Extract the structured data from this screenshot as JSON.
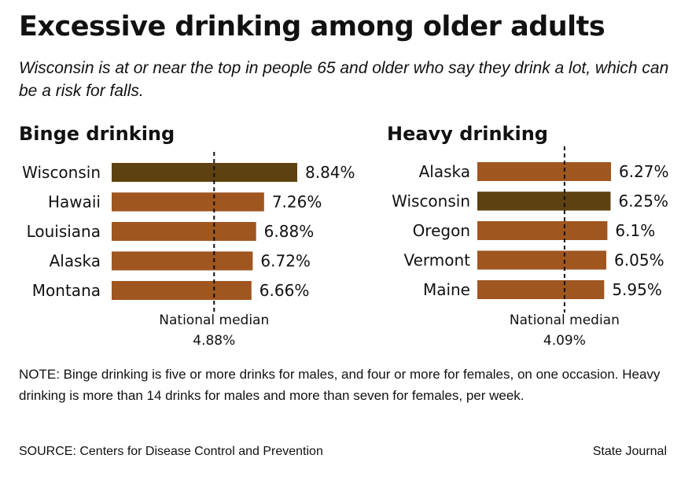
{
  "title": "Excessive drinking among older adults",
  "subtitle": "Wisconsin is at or near the top in people 65 and older who say they drink a lot, which can be a risk for falls.",
  "colors": {
    "highlight": "#5e4110",
    "bar": "#a0561f",
    "text": "#111111",
    "median_line": "#111111"
  },
  "chart_data": [
    {
      "type": "bar",
      "orientation": "horizontal",
      "title": "Binge drinking",
      "categories": [
        "Wisconsin",
        "Hawaii",
        "Louisiana",
        "Alaska",
        "Montana"
      ],
      "values": [
        8.84,
        7.26,
        6.88,
        6.72,
        6.66
      ],
      "value_labels": [
        "8.84%",
        "7.26%",
        "6.88%",
        "6.72%",
        "6.66%"
      ],
      "highlight": "Wisconsin",
      "reference_line": {
        "label": "National median",
        "value": 4.88,
        "value_label": "4.88%"
      },
      "xlim": [
        0,
        8.84
      ]
    },
    {
      "type": "bar",
      "orientation": "horizontal",
      "title": "Heavy drinking",
      "categories": [
        "Alaska",
        "Wisconsin",
        "Oregon",
        "Vermont",
        "Maine"
      ],
      "values": [
        6.27,
        6.25,
        6.1,
        6.05,
        5.95
      ],
      "value_labels": [
        "6.27%",
        "6.25%",
        "6.1%",
        "6.05%",
        "5.95%"
      ],
      "highlight": "Wisconsin",
      "reference_line": {
        "label": "National median",
        "value": 4.09,
        "value_label": "4.09%"
      },
      "xlim": [
        0,
        6.27
      ]
    }
  ],
  "note": "NOTE: Binge drinking is five or more drinks for males, and four or more for females, on one occasion. Heavy drinking is more than 14 drinks for males and more than seven for females, per week.",
  "source": "SOURCE: Centers for Disease Control and Prevention",
  "credit": "State Journal"
}
